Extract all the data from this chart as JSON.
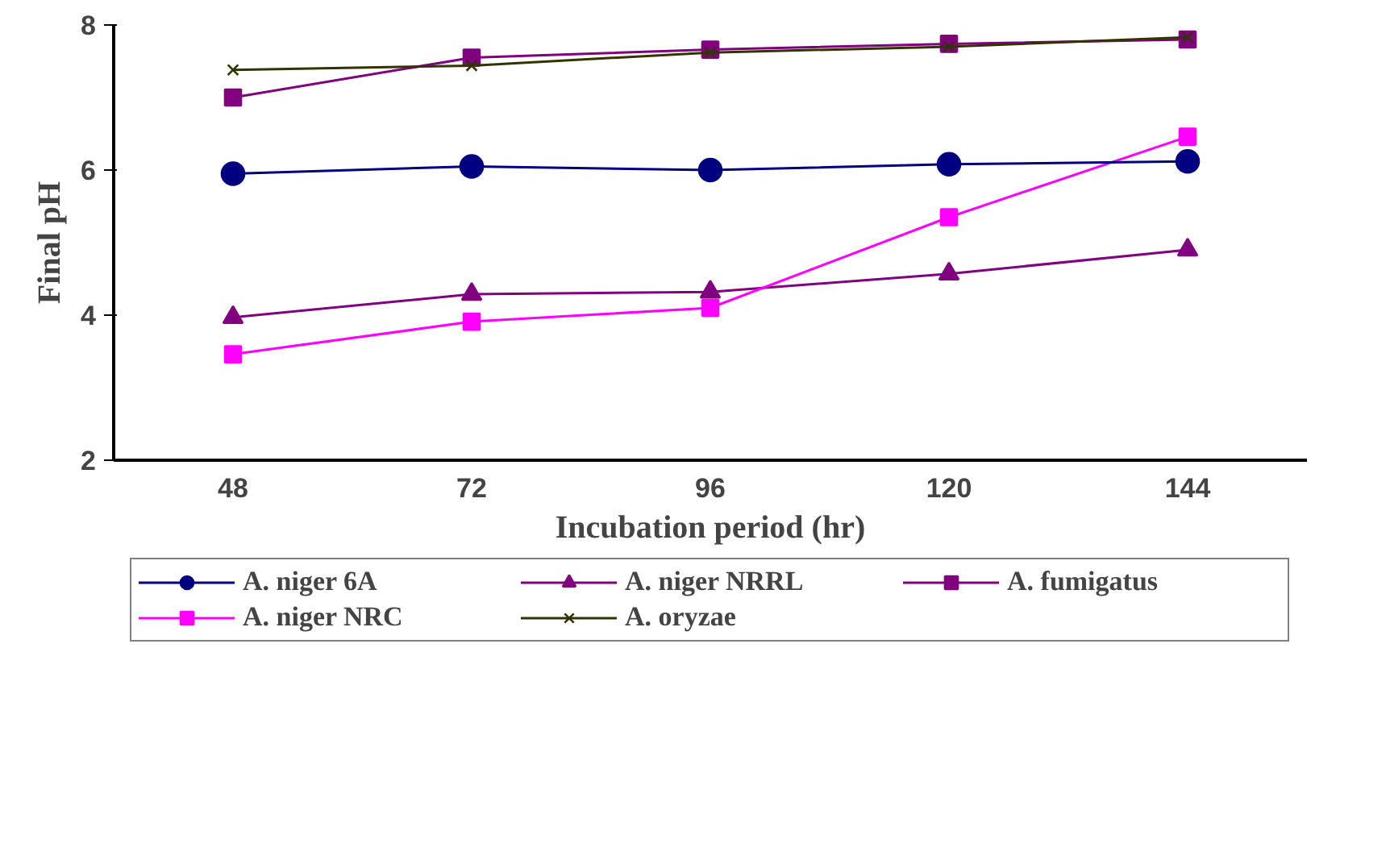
{
  "chart_data": {
    "type": "line",
    "xlabel": "Incubation period (hr)",
    "ylabel": "Final pH",
    "categories": [
      "48",
      "72",
      "96",
      "120",
      "144"
    ],
    "ylim": [
      2,
      8
    ],
    "yticks": [
      2,
      4,
      6,
      8
    ],
    "grid": false,
    "legend": "bottom",
    "series": [
      {
        "name": "A. niger 6A",
        "color": "#000080",
        "marker": "circle",
        "values": [
          5.95,
          6.05,
          6.0,
          6.08,
          6.12
        ]
      },
      {
        "name": "A. niger NRC",
        "color": "#ff00ff",
        "marker": "square",
        "values": [
          3.46,
          3.91,
          4.1,
          5.35,
          6.46
        ]
      },
      {
        "name": "A. niger NRRL",
        "color": "#800080",
        "marker": "triangle",
        "values": [
          3.97,
          4.29,
          4.32,
          4.57,
          4.9
        ]
      },
      {
        "name": "A. oryzae",
        "color": "#333300",
        "marker": "cross",
        "values": [
          7.38,
          7.44,
          7.62,
          7.7,
          7.83
        ]
      },
      {
        "name": "A. fumigatus",
        "color": "#800080",
        "marker": "square",
        "values": [
          7.0,
          7.55,
          7.66,
          7.74,
          7.8
        ]
      }
    ]
  }
}
